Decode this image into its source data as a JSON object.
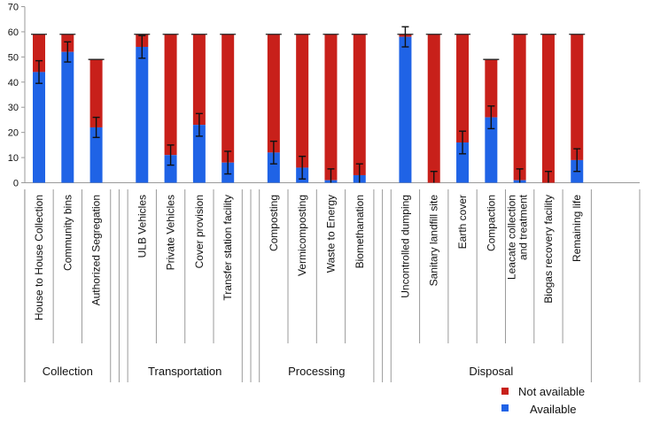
{
  "chart_data": {
    "type": "bar",
    "stacked": true,
    "ylim": [
      0,
      70
    ],
    "yticks": [
      0,
      10,
      20,
      30,
      40,
      50,
      60,
      70
    ],
    "grid": false,
    "legend_position": "bottom-right",
    "groups": [
      {
        "name": "Collection",
        "categories": [
          "House to House Collection",
          "Community bins",
          "Authorized Segregation"
        ]
      },
      {
        "name": "Transportation",
        "categories": [
          "ULB Vehicles",
          "Private Vehicles",
          "Cover provision",
          "Transfer station facility"
        ]
      },
      {
        "name": "Processing",
        "categories": [
          "Composting",
          "Vermicomposting",
          "Waste to Energy",
          "Biomethanation"
        ]
      },
      {
        "name": "Disposal",
        "categories": [
          "Uncontrolled dumping",
          "Sanitary landfill site",
          "Earth cover",
          "Compaction",
          "Leacate collection and treatment",
          "Biogas recovery facility",
          "Remaining life"
        ]
      }
    ],
    "series": [
      {
        "name": "Available",
        "color": "#1f63e6",
        "values": [
          44,
          52,
          22,
          54,
          11,
          23,
          8,
          12,
          6,
          1,
          3,
          58,
          0,
          16,
          26,
          1,
          0,
          9
        ],
        "error": [
          4.5,
          4,
          4,
          4.5,
          4,
          4.5,
          4.5,
          4.5,
          4.5,
          4.5,
          4.5,
          4,
          4.5,
          4.5,
          4.5,
          4.5,
          4.5,
          4.5
        ]
      },
      {
        "name": "Not available",
        "color": "#c8201a",
        "values": [
          15,
          7,
          27,
          5,
          48,
          36,
          51,
          47,
          53,
          58,
          56,
          1,
          59,
          43,
          23,
          58,
          59,
          50
        ]
      }
    ]
  }
}
